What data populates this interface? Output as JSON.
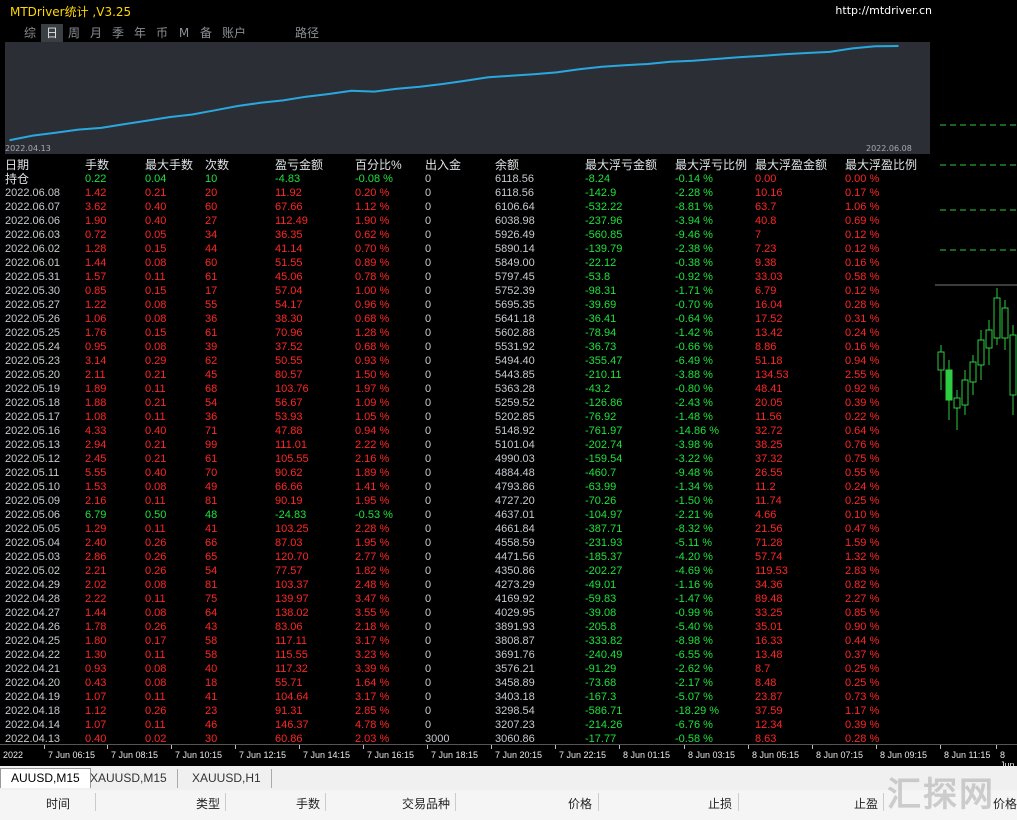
{
  "window": {
    "title": "MTDriver统计 ,V3.25",
    "url": "http://mtdriver.cn"
  },
  "tabs": [
    "综",
    "日",
    "周",
    "月",
    "季",
    "年",
    "币",
    "M",
    "备",
    "账户",
    "路径"
  ],
  "active_tab": "日",
  "chart": {
    "start_label": "2022.04.13",
    "end_label": "2022.06.08",
    "line_color": "#29a8e0"
  },
  "chart_data": {
    "type": "line",
    "x": [
      "2022.04.13",
      "2022.04.14",
      "2022.04.18",
      "2022.04.19",
      "2022.04.20",
      "2022.04.21",
      "2022.04.22",
      "2022.04.25",
      "2022.04.26",
      "2022.04.27",
      "2022.04.28",
      "2022.04.29",
      "2022.05.02",
      "2022.05.03",
      "2022.05.04",
      "2022.05.05",
      "2022.05.06",
      "2022.05.09",
      "2022.05.10",
      "2022.05.11",
      "2022.05.12",
      "2022.05.13",
      "2022.05.16",
      "2022.05.17",
      "2022.05.18",
      "2022.05.19",
      "2022.05.20",
      "2022.05.23",
      "2022.05.24",
      "2022.05.25",
      "2022.05.26",
      "2022.05.27",
      "2022.05.30",
      "2022.05.31",
      "2022.06.01",
      "2022.06.02",
      "2022.06.03",
      "2022.06.06",
      "2022.06.07",
      "2022.06.08"
    ],
    "values": [
      3060.86,
      3207.23,
      3298.54,
      3403.18,
      3458.89,
      3576.21,
      3691.76,
      3808.87,
      3891.93,
      4029.95,
      4169.92,
      4273.29,
      4350.86,
      4471.56,
      4558.59,
      4661.84,
      4637.01,
      4727.2,
      4793.86,
      4884.48,
      4990.03,
      5101.04,
      5148.92,
      5202.85,
      5259.52,
      5363.28,
      5443.85,
      5494.4,
      5531.92,
      5602.88,
      5641.18,
      5695.35,
      5752.39,
      5797.45,
      5849.0,
      5890.14,
      5926.49,
      6038.98,
      6106.64,
      6118.56
    ]
  },
  "headers": [
    "日期",
    "手数",
    "最大手数",
    "次数",
    "盈亏金额",
    "百分比%",
    "出入金",
    "余额",
    "最大浮亏金额",
    "最大浮亏比例",
    "最大浮盈金额",
    "最大浮盈比例"
  ],
  "holding": [
    "持仓",
    "0.22",
    "0.04",
    "10",
    "-4.83",
    "-0.08 %",
    "0",
    "6118.56",
    "-8.24",
    "-0.14 %",
    "0.00",
    "0.00 %"
  ],
  "rows": [
    [
      "2022.06.08",
      "1.42",
      "0.21",
      "20",
      "11.92",
      "0.20 %",
      "0",
      "6118.56",
      "-142.9",
      "-2.28 %",
      "10.16",
      "0.17 %"
    ],
    [
      "2022.06.07",
      "3.62",
      "0.40",
      "60",
      "67.66",
      "1.12 %",
      "0",
      "6106.64",
      "-532.22",
      "-8.81 %",
      "63.7",
      "1.06 %"
    ],
    [
      "2022.06.06",
      "1.90",
      "0.40",
      "27",
      "112.49",
      "1.90 %",
      "0",
      "6038.98",
      "-237.96",
      "-3.94 %",
      "40.8",
      "0.69 %"
    ],
    [
      "2022.06.03",
      "0.72",
      "0.05",
      "34",
      "36.35",
      "0.62 %",
      "0",
      "5926.49",
      "-560.85",
      "-9.46 %",
      "7",
      "0.12 %"
    ],
    [
      "2022.06.02",
      "1.28",
      "0.15",
      "44",
      "41.14",
      "0.70 %",
      "0",
      "5890.14",
      "-139.79",
      "-2.38 %",
      "7.23",
      "0.12 %"
    ],
    [
      "2022.06.01",
      "1.44",
      "0.08",
      "60",
      "51.55",
      "0.89 %",
      "0",
      "5849.00",
      "-22.12",
      "-0.38 %",
      "9.38",
      "0.16 %"
    ],
    [
      "2022.05.31",
      "1.57",
      "0.11",
      "61",
      "45.06",
      "0.78 %",
      "0",
      "5797.45",
      "-53.8",
      "-0.92 %",
      "33.03",
      "0.58 %"
    ],
    [
      "2022.05.30",
      "0.85",
      "0.15",
      "17",
      "57.04",
      "1.00 %",
      "0",
      "5752.39",
      "-98.31",
      "-1.71 %",
      "6.79",
      "0.12 %"
    ],
    [
      "2022.05.27",
      "1.22",
      "0.08",
      "55",
      "54.17",
      "0.96 %",
      "0",
      "5695.35",
      "-39.69",
      "-0.70 %",
      "16.04",
      "0.28 %"
    ],
    [
      "2022.05.26",
      "1.06",
      "0.08",
      "36",
      "38.30",
      "0.68 %",
      "0",
      "5641.18",
      "-36.41",
      "-0.64 %",
      "17.52",
      "0.31 %"
    ],
    [
      "2022.05.25",
      "1.76",
      "0.15",
      "61",
      "70.96",
      "1.28 %",
      "0",
      "5602.88",
      "-78.94",
      "-1.42 %",
      "13.42",
      "0.24 %"
    ],
    [
      "2022.05.24",
      "0.95",
      "0.08",
      "39",
      "37.52",
      "0.68 %",
      "0",
      "5531.92",
      "-36.73",
      "-0.66 %",
      "8.86",
      "0.16 %"
    ],
    [
      "2022.05.23",
      "3.14",
      "0.29",
      "62",
      "50.55",
      "0.93 %",
      "0",
      "5494.40",
      "-355.47",
      "-6.49 %",
      "51.18",
      "0.94 %"
    ],
    [
      "2022.05.20",
      "2.11",
      "0.21",
      "45",
      "80.57",
      "1.50 %",
      "0",
      "5443.85",
      "-210.11",
      "-3.88 %",
      "134.53",
      "2.55 %"
    ],
    [
      "2022.05.19",
      "1.89",
      "0.11",
      "68",
      "103.76",
      "1.97 %",
      "0",
      "5363.28",
      "-43.2",
      "-0.80 %",
      "48.41",
      "0.92 %"
    ],
    [
      "2022.05.18",
      "1.88",
      "0.21",
      "54",
      "56.67",
      "1.09 %",
      "0",
      "5259.52",
      "-126.86",
      "-2.43 %",
      "20.05",
      "0.39 %"
    ],
    [
      "2022.05.17",
      "1.08",
      "0.11",
      "36",
      "53.93",
      "1.05 %",
      "0",
      "5202.85",
      "-76.92",
      "-1.48 %",
      "11.56",
      "0.22 %"
    ],
    [
      "2022.05.16",
      "4.33",
      "0.40",
      "71",
      "47.88",
      "0.94 %",
      "0",
      "5148.92",
      "-761.97",
      "-14.86 %",
      "32.72",
      "0.64 %"
    ],
    [
      "2022.05.13",
      "2.94",
      "0.21",
      "99",
      "111.01",
      "2.22 %",
      "0",
      "5101.04",
      "-202.74",
      "-3.98 %",
      "38.25",
      "0.76 %"
    ],
    [
      "2022.05.12",
      "2.45",
      "0.21",
      "61",
      "105.55",
      "2.16 %",
      "0",
      "4990.03",
      "-159.54",
      "-3.22 %",
      "37.32",
      "0.75 %"
    ],
    [
      "2022.05.11",
      "5.55",
      "0.40",
      "70",
      "90.62",
      "1.89 %",
      "0",
      "4884.48",
      "-460.7",
      "-9.48 %",
      "26.55",
      "0.55 %"
    ],
    [
      "2022.05.10",
      "1.53",
      "0.08",
      "49",
      "66.66",
      "1.41 %",
      "0",
      "4793.86",
      "-63.99",
      "-1.34 %",
      "11.2",
      "0.24 %"
    ],
    [
      "2022.05.09",
      "2.16",
      "0.11",
      "81",
      "90.19",
      "1.95 %",
      "0",
      "4727.20",
      "-70.26",
      "-1.50 %",
      "11.74",
      "0.25 %"
    ],
    [
      "2022.05.06",
      "6.79",
      "0.50",
      "48",
      "-24.83",
      "-0.53 %",
      "0",
      "4637.01",
      "-104.97",
      "-2.21 %",
      "4.66",
      "0.10 %"
    ],
    [
      "2022.05.05",
      "1.29",
      "0.11",
      "41",
      "103.25",
      "2.28 %",
      "0",
      "4661.84",
      "-387.71",
      "-8.32 %",
      "21.56",
      "0.47 %"
    ],
    [
      "2022.05.04",
      "2.40",
      "0.26",
      "66",
      "87.03",
      "1.95 %",
      "0",
      "4558.59",
      "-231.93",
      "-5.11 %",
      "71.28",
      "1.59 %"
    ],
    [
      "2022.05.03",
      "2.86",
      "0.26",
      "65",
      "120.70",
      "2.77 %",
      "0",
      "4471.56",
      "-185.37",
      "-4.20 %",
      "57.74",
      "1.32 %"
    ],
    [
      "2022.05.02",
      "2.21",
      "0.26",
      "54",
      "77.57",
      "1.82 %",
      "0",
      "4350.86",
      "-202.27",
      "-4.69 %",
      "119.53",
      "2.83 %"
    ],
    [
      "2022.04.29",
      "2.02",
      "0.08",
      "81",
      "103.37",
      "2.48 %",
      "0",
      "4273.29",
      "-49.01",
      "-1.16 %",
      "34.36",
      "0.82 %"
    ],
    [
      "2022.04.28",
      "2.22",
      "0.11",
      "75",
      "139.97",
      "3.47 %",
      "0",
      "4169.92",
      "-59.83",
      "-1.47 %",
      "89.48",
      "2.27 %"
    ],
    [
      "2022.04.27",
      "1.44",
      "0.08",
      "64",
      "138.02",
      "3.55 %",
      "0",
      "4029.95",
      "-39.08",
      "-0.99 %",
      "33.25",
      "0.85 %"
    ],
    [
      "2022.04.26",
      "1.78",
      "0.26",
      "43",
      "83.06",
      "2.18 %",
      "0",
      "3891.93",
      "-205.8",
      "-5.40 %",
      "35.01",
      "0.90 %"
    ],
    [
      "2022.04.25",
      "1.80",
      "0.17",
      "58",
      "117.11",
      "3.17 %",
      "0",
      "3808.87",
      "-333.82",
      "-8.98 %",
      "16.33",
      "0.44 %"
    ],
    [
      "2022.04.22",
      "1.30",
      "0.11",
      "58",
      "115.55",
      "3.23 %",
      "0",
      "3691.76",
      "-240.49",
      "-6.55 %",
      "13.48",
      "0.37 %"
    ],
    [
      "2022.04.21",
      "0.93",
      "0.08",
      "40",
      "117.32",
      "3.39 %",
      "0",
      "3576.21",
      "-91.29",
      "-2.62 %",
      "8.7",
      "0.25 %"
    ],
    [
      "2022.04.20",
      "0.43",
      "0.08",
      "18",
      "55.71",
      "1.64 %",
      "0",
      "3458.89",
      "-73.68",
      "-2.17 %",
      "8.48",
      "0.25 %"
    ],
    [
      "2022.04.19",
      "1.07",
      "0.11",
      "41",
      "104.64",
      "3.17 %",
      "0",
      "3403.18",
      "-167.3",
      "-5.07 %",
      "23.87",
      "0.73 %"
    ],
    [
      "2022.04.18",
      "1.12",
      "0.26",
      "23",
      "91.31",
      "2.85 %",
      "0",
      "3298.54",
      "-586.71",
      "-18.29 %",
      "37.59",
      "1.17 %"
    ],
    [
      "2022.04.14",
      "1.07",
      "0.11",
      "46",
      "146.37",
      "4.78 %",
      "0",
      "3207.23",
      "-214.26",
      "-6.76 %",
      "12.34",
      "0.39 %"
    ],
    [
      "2022.04.13",
      "0.40",
      "0.02",
      "30",
      "60.86",
      "2.03 %",
      "3000",
      "3060.86",
      "-17.77",
      "-0.58 %",
      "8.63",
      "0.28 %"
    ]
  ],
  "time_axis": [
    "2022",
    "7 Jun 06:15",
    "7 Jun 08:15",
    "7 Jun 10:15",
    "7 Jun 12:15",
    "7 Jun 14:15",
    "7 Jun 16:15",
    "7 Jun 18:15",
    "7 Jun 20:15",
    "7 Jun 22:15",
    "8 Jun 01:15",
    "8 Jun 03:15",
    "8 Jun 05:15",
    "8 Jun 07:15",
    "8 Jun 09:15",
    "8 Jun 11:15",
    "8 Jun"
  ],
  "symbol_tabs": [
    "AUUSD,M15",
    "XAUUSD,M15",
    "XAUUSD,H1"
  ],
  "order_headers": [
    "时间",
    "类型",
    "手数",
    "交易品种",
    "价格",
    "止损",
    "止盈",
    "价格"
  ],
  "watermark": "汇探网"
}
